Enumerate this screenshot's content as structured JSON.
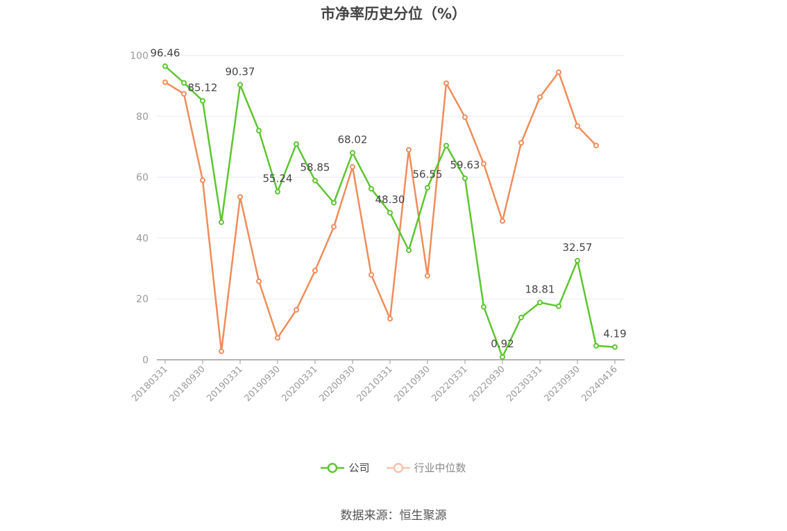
{
  "chart_data": {
    "type": "line",
    "title": "市净率历史分位（%）",
    "xlabel": "",
    "ylabel": "",
    "ylim": [
      0,
      100
    ],
    "yticks": [
      0,
      20,
      40,
      60,
      80,
      100
    ],
    "grid": true,
    "legend_position": "bottom-center",
    "x": [
      "20180331",
      "20180630",
      "20180930",
      "20181231",
      "20190331",
      "20190630",
      "20190930",
      "20191231",
      "20200331",
      "20200630",
      "20200930",
      "20201231",
      "20210331",
      "20210630",
      "20210930",
      "20211231",
      "20220331",
      "20220630",
      "20220930",
      "20221231",
      "20230331",
      "20230630",
      "20230930",
      "20231231",
      "20240416"
    ],
    "xtick_labels": [
      "20180331",
      "20180930",
      "20190331",
      "20190930",
      "20200331",
      "20200930",
      "20210331",
      "20210930",
      "20220331",
      "20220930",
      "20230331",
      "20230930",
      "20240416"
    ],
    "series": [
      {
        "name": "公司",
        "color": "#5cc530",
        "values": [
          96.46,
          91.0,
          85.12,
          45.2,
          90.37,
          75.3,
          55.24,
          70.9,
          58.85,
          51.6,
          68.02,
          56.2,
          48.3,
          36.0,
          56.55,
          70.4,
          59.63,
          17.4,
          0.92,
          13.9,
          18.81,
          17.6,
          32.57,
          4.6,
          4.19
        ],
        "labels": {
          "0": "96.46",
          "2": "85.12",
          "4": "90.37",
          "6": "55.24",
          "8": "58.85",
          "10": "68.02",
          "12": "48.30",
          "14": "56.55",
          "16": "59.63",
          "18": "0.92",
          "20": "18.81",
          "22": "32.57",
          "24": "4.19"
        }
      },
      {
        "name": "行业中位数",
        "color": "#f08c5a",
        "values": [
          91.2,
          87.4,
          59.0,
          2.8,
          53.5,
          25.8,
          7.2,
          16.4,
          29.3,
          43.7,
          63.4,
          27.9,
          13.5,
          69.0,
          27.6,
          90.9,
          79.7,
          64.4,
          45.6,
          71.3,
          86.3,
          94.5,
          76.8,
          70.4,
          null
        ]
      }
    ]
  },
  "footer": {
    "source": "数据来源：恒生聚源"
  }
}
